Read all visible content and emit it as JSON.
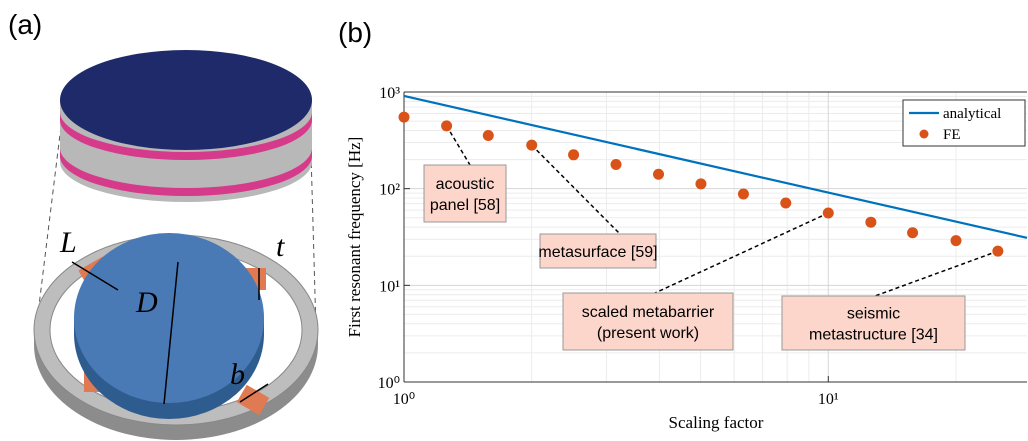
{
  "panel_labels": [
    "(a)",
    "(b)"
  ],
  "diagram": {
    "labels": [
      "L",
      "t",
      "D",
      "b"
    ]
  },
  "chart_data": {
    "type": "line",
    "xlabel": "Scaling factor",
    "ylabel": "First resonant frequency [Hz]",
    "xscale": "log",
    "yscale": "log",
    "grid": true,
    "minor_grid": true,
    "legend": "upper right",
    "xlim": [
      1,
      29.4
    ],
    "ylim": [
      1,
      1000
    ],
    "xticks": [
      {
        "value": 1,
        "label": "10⁰"
      },
      {
        "value": 10,
        "label": "10¹"
      }
    ],
    "yticks": [
      {
        "value": 1,
        "label": "10⁰"
      },
      {
        "value": 10,
        "label": "10¹"
      },
      {
        "value": 100,
        "label": "10²"
      },
      {
        "value": 1000,
        "label": "10³"
      }
    ],
    "series": [
      {
        "name": "analytical",
        "color": "#0072bd",
        "style": "line",
        "x": [
          1,
          29.4
        ],
        "values": [
          910,
          31
        ]
      },
      {
        "name": "FE",
        "color": "#d95319",
        "style": "marker",
        "x": [
          1,
          1.26,
          1.58,
          2,
          2.51,
          3.16,
          3.98,
          5.01,
          6.31,
          7.94,
          10,
          12.6,
          15.8,
          20,
          25.1
        ],
        "values": [
          550,
          446,
          355,
          282,
          224,
          178,
          141,
          112,
          88,
          71,
          56,
          45,
          35,
          29,
          22.6
        ]
      }
    ],
    "annotations": [
      {
        "text": [
          "acoustic",
          "panel [58]"
        ],
        "x": 1.26,
        "y": 446
      },
      {
        "text": [
          "metasurface [59]"
        ],
        "x": 2,
        "y": 282
      },
      {
        "text": [
          "scaled metabarrier",
          "(present work)"
        ],
        "x": 10,
        "y": 56
      },
      {
        "text": [
          "seismic",
          "metastructure [34]"
        ],
        "x": 25.1,
        "y": 22.6
      }
    ]
  }
}
